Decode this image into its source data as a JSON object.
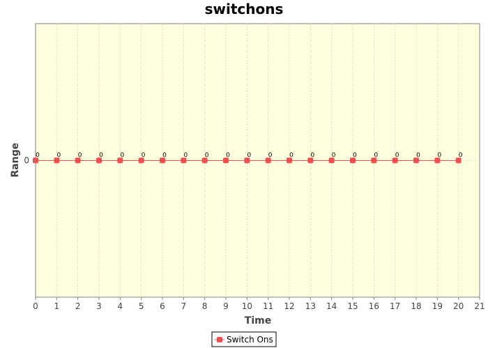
{
  "colors": {
    "plot_background": "#ffffe0",
    "series": "#f05050",
    "grid": "#d8d8b8",
    "axis": "#808080"
  },
  "chart_data": {
    "type": "line",
    "title": "switchons",
    "xlabel": "Time",
    "ylabel": "Range",
    "xlim": [
      0,
      21
    ],
    "ylim": [
      -1,
      1
    ],
    "x_ticks": [
      0,
      1,
      2,
      3,
      4,
      5,
      6,
      7,
      8,
      9,
      10,
      11,
      12,
      13,
      14,
      15,
      16,
      17,
      18,
      19,
      20,
      21
    ],
    "y_ticks": [
      0
    ],
    "grid": true,
    "legend_position": "bottom-center",
    "series": [
      {
        "name": "Switch Ons",
        "marker": "square",
        "x": [
          0,
          1,
          2,
          3,
          4,
          5,
          6,
          7,
          8,
          9,
          10,
          11,
          12,
          13,
          14,
          15,
          16,
          17,
          18,
          19,
          20
        ],
        "y": [
          0,
          0,
          0,
          0,
          0,
          0,
          0,
          0,
          0,
          0,
          0,
          0,
          0,
          0,
          0,
          0,
          0,
          0,
          0,
          0,
          0
        ],
        "data_labels": [
          "0",
          "0",
          "0",
          "0",
          "0",
          "0",
          "0",
          "0",
          "0",
          "0",
          "0",
          "0",
          "0",
          "0",
          "0",
          "0",
          "0",
          "0",
          "0",
          "0",
          "0"
        ]
      }
    ]
  }
}
